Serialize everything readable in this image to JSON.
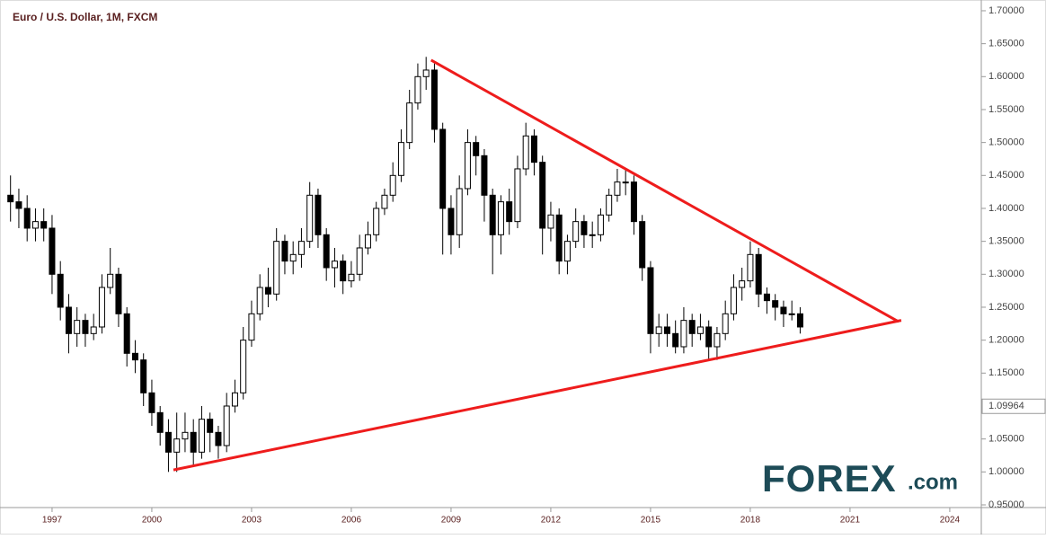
{
  "chart_data": {
    "type": "candlestick",
    "title": "Euro / U.S. Dollar, 1M, FXCM",
    "x": [
      1995.75,
      1996,
      1996.25,
      1996.5,
      1996.75,
      1997,
      1997.25,
      1997.5,
      1997.75,
      1998,
      1998.25,
      1998.5,
      1998.75,
      1999,
      1999.25,
      1999.5,
      1999.75,
      2000,
      2000.25,
      2000.5,
      2000.75,
      2001,
      2001.25,
      2001.5,
      2001.75,
      2002,
      2002.25,
      2002.5,
      2002.75,
      2003,
      2003.25,
      2003.5,
      2003.75,
      2004,
      2004.25,
      2004.5,
      2004.75,
      2005,
      2005.25,
      2005.5,
      2005.75,
      2006,
      2006.25,
      2006.5,
      2006.75,
      2007,
      2007.25,
      2007.5,
      2007.75,
      2008,
      2008.25,
      2008.5,
      2008.75,
      2009,
      2009.25,
      2009.5,
      2009.75,
      2010,
      2010.25,
      2010.5,
      2010.75,
      2011,
      2011.25,
      2011.5,
      2011.75,
      2012,
      2012.25,
      2012.5,
      2012.75,
      2013,
      2013.25,
      2013.5,
      2013.75,
      2014,
      2014.25,
      2014.5,
      2014.75,
      2015,
      2015.25,
      2015.5,
      2015.75,
      2016,
      2016.25,
      2016.5,
      2016.75,
      2017,
      2017.25,
      2017.5,
      2017.75,
      2018,
      2018.25,
      2018.5,
      2018.75,
      2019,
      2019.25,
      2019.5
    ],
    "open": [
      1.42,
      1.41,
      1.4,
      1.37,
      1.38,
      1.37,
      1.3,
      1.25,
      1.21,
      1.23,
      1.21,
      1.22,
      1.28,
      1.3,
      1.24,
      1.18,
      1.17,
      1.12,
      1.09,
      1.06,
      1.03,
      1.05,
      1.06,
      1.03,
      1.08,
      1.06,
      1.04,
      1.1,
      1.12,
      1.2,
      1.24,
      1.28,
      1.27,
      1.35,
      1.32,
      1.33,
      1.35,
      1.42,
      1.36,
      1.31,
      1.32,
      1.29,
      1.3,
      1.34,
      1.36,
      1.4,
      1.42,
      1.45,
      1.5,
      1.56,
      1.6,
      1.61,
      1.52,
      1.4,
      1.36,
      1.43,
      1.5,
      1.48,
      1.42,
      1.36,
      1.41,
      1.38,
      1.46,
      1.51,
      1.47,
      1.37,
      1.39,
      1.32,
      1.35,
      1.38,
      1.36,
      1.36,
      1.39,
      1.42,
      1.44,
      1.44,
      1.38,
      1.31,
      1.21,
      1.22,
      1.21,
      1.19,
      1.23,
      1.21,
      1.22,
      1.19,
      1.21,
      1.24,
      1.28,
      1.29,
      1.33,
      1.27,
      1.26,
      1.25,
      1.24,
      1.24
    ],
    "high": [
      1.45,
      1.43,
      1.42,
      1.4,
      1.4,
      1.39,
      1.32,
      1.27,
      1.25,
      1.24,
      1.24,
      1.3,
      1.34,
      1.31,
      1.25,
      1.2,
      1.18,
      1.14,
      1.1,
      1.08,
      1.09,
      1.09,
      1.08,
      1.1,
      1.09,
      1.07,
      1.12,
      1.14,
      1.22,
      1.26,
      1.3,
      1.31,
      1.37,
      1.36,
      1.35,
      1.37,
      1.44,
      1.43,
      1.37,
      1.34,
      1.33,
      1.32,
      1.36,
      1.38,
      1.41,
      1.43,
      1.47,
      1.52,
      1.58,
      1.62,
      1.63,
      1.62,
      1.53,
      1.42,
      1.45,
      1.52,
      1.51,
      1.49,
      1.43,
      1.42,
      1.43,
      1.48,
      1.53,
      1.52,
      1.48,
      1.41,
      1.4,
      1.36,
      1.4,
      1.39,
      1.38,
      1.4,
      1.43,
      1.46,
      1.46,
      1.45,
      1.39,
      1.32,
      1.24,
      1.24,
      1.23,
      1.25,
      1.24,
      1.24,
      1.23,
      1.22,
      1.26,
      1.3,
      1.31,
      1.35,
      1.34,
      1.28,
      1.27,
      1.26,
      1.26,
      1.25
    ],
    "low": [
      1.38,
      1.37,
      1.35,
      1.35,
      1.35,
      1.27,
      1.23,
      1.18,
      1.19,
      1.19,
      1.2,
      1.21,
      1.27,
      1.22,
      1.16,
      1.15,
      1.1,
      1.07,
      1.04,
      1.0,
      1.0,
      1.03,
      1.01,
      1.02,
      1.03,
      1.02,
      1.03,
      1.09,
      1.11,
      1.19,
      1.23,
      1.25,
      1.26,
      1.3,
      1.3,
      1.31,
      1.34,
      1.34,
      1.29,
      1.28,
      1.27,
      1.28,
      1.29,
      1.33,
      1.35,
      1.39,
      1.41,
      1.44,
      1.49,
      1.55,
      1.58,
      1.5,
      1.33,
      1.33,
      1.34,
      1.42,
      1.45,
      1.38,
      1.3,
      1.33,
      1.36,
      1.37,
      1.45,
      1.45,
      1.33,
      1.35,
      1.3,
      1.3,
      1.34,
      1.34,
      1.34,
      1.35,
      1.38,
      1.41,
      1.42,
      1.36,
      1.29,
      1.18,
      1.19,
      1.19,
      1.18,
      1.18,
      1.19,
      1.2,
      1.17,
      1.17,
      1.2,
      1.23,
      1.26,
      1.28,
      1.25,
      1.24,
      1.23,
      1.22,
      1.23,
      1.21
    ],
    "close": [
      1.41,
      1.4,
      1.37,
      1.38,
      1.37,
      1.3,
      1.25,
      1.21,
      1.23,
      1.21,
      1.22,
      1.28,
      1.3,
      1.24,
      1.18,
      1.17,
      1.12,
      1.09,
      1.06,
      1.03,
      1.05,
      1.06,
      1.03,
      1.08,
      1.06,
      1.04,
      1.1,
      1.12,
      1.2,
      1.24,
      1.28,
      1.27,
      1.35,
      1.32,
      1.33,
      1.35,
      1.42,
      1.36,
      1.31,
      1.32,
      1.29,
      1.3,
      1.34,
      1.36,
      1.4,
      1.42,
      1.45,
      1.5,
      1.56,
      1.6,
      1.61,
      1.52,
      1.4,
      1.36,
      1.43,
      1.5,
      1.48,
      1.42,
      1.36,
      1.41,
      1.38,
      1.46,
      1.51,
      1.47,
      1.37,
      1.39,
      1.32,
      1.35,
      1.38,
      1.36,
      1.36,
      1.39,
      1.42,
      1.44,
      1.44,
      1.38,
      1.31,
      1.21,
      1.22,
      1.21,
      1.19,
      1.23,
      1.21,
      1.22,
      1.19,
      1.21,
      1.24,
      1.28,
      1.29,
      1.33,
      1.27,
      1.26,
      1.25,
      1.24,
      1.24,
      1.22
    ],
    "up_color": "#ffffff",
    "down_color": "#000000",
    "xlim": [
      1995.65,
      2024.84
    ],
    "ylim": [
      0.9459,
      1.7095
    ],
    "xticks": [
      1997,
      2000,
      2003,
      2006,
      2009,
      2012,
      2015,
      2018,
      2021,
      2024
    ],
    "yticks": [
      {
        "value": 0.95,
        "label": "0.95000"
      },
      {
        "value": 1.0,
        "label": "1.00000"
      },
      {
        "value": 1.05,
        "label": "1.05000"
      },
      {
        "value": 1.15,
        "label": "1.15000"
      },
      {
        "value": 1.2,
        "label": "1.20000"
      },
      {
        "value": 1.25,
        "label": "1.25000"
      },
      {
        "value": 1.3,
        "label": "1.30000"
      },
      {
        "value": 1.35,
        "label": "1.35000"
      },
      {
        "value": 1.4,
        "label": "1.40000"
      },
      {
        "value": 1.45,
        "label": "1.45000"
      },
      {
        "value": 1.5,
        "label": "1.50000"
      },
      {
        "value": 1.55,
        "label": "1.55000"
      },
      {
        "value": 1.6,
        "label": "1.60000"
      },
      {
        "value": 1.65,
        "label": "1.65000"
      },
      {
        "value": 1.7,
        "label": "1.70000"
      }
    ],
    "price_marker": 1.09964,
    "trendlines": [
      {
        "color": "#ee1c1c",
        "x": [
          2008.4,
          2022.46
        ],
        "y": [
          1.625,
          1.228
        ]
      },
      {
        "color": "#ee1c1c",
        "x": [
          2000.65,
          2022.54
        ],
        "y": [
          1.003,
          1.23
        ]
      }
    ]
  },
  "logo": {
    "brand": "FOREX",
    "suffix": ".com"
  }
}
